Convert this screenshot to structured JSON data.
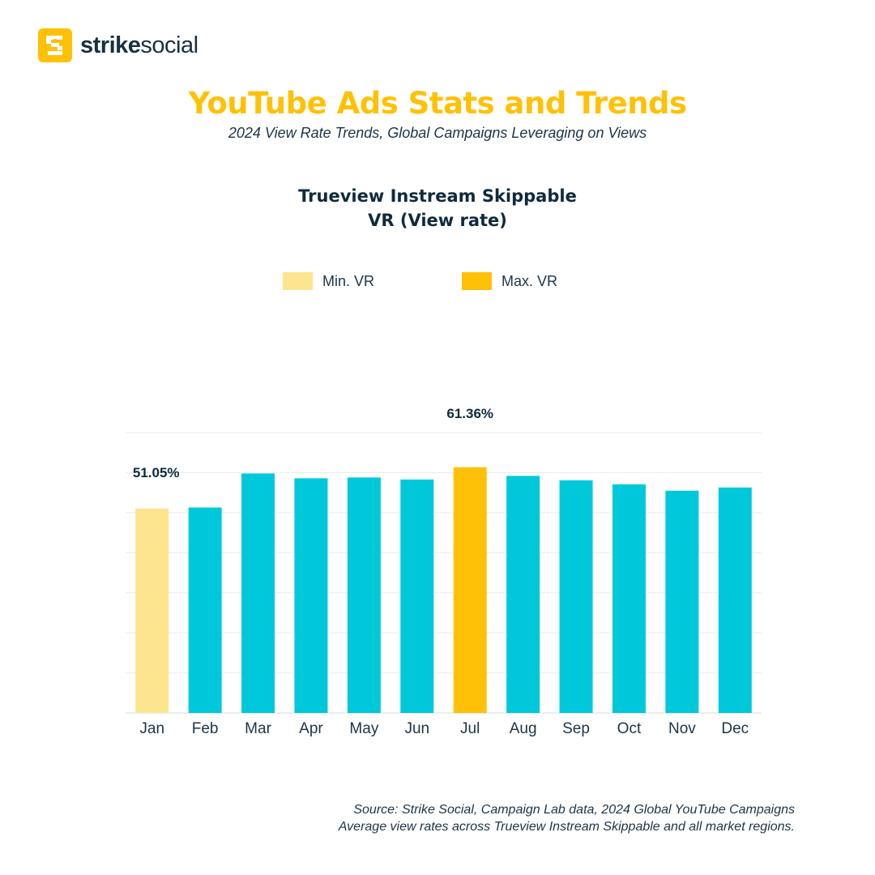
{
  "brand": {
    "name_bold": "strike",
    "name_regular": "social",
    "logo_icon": "strike-social-logo-icon"
  },
  "header": {
    "title": "YouTube Ads Stats and Trends",
    "subtitle": "2024 View Rate Trends, Global Campaigns Leveraging on Views"
  },
  "legend": {
    "items": [
      {
        "label": "Min. VR",
        "color": "#fde58f"
      },
      {
        "label": "Max. VR",
        "color": "#ffc107"
      }
    ]
  },
  "colors": {
    "default_bar": "#00c8db",
    "min_bar": "#fde58f",
    "max_bar": "#ffc107",
    "title": "#ffc107",
    "text": "#0f2a3d"
  },
  "chart_data": {
    "type": "bar",
    "title_line1": "Trueview Instream Skippable",
    "title_line2": "VR (View rate)",
    "categories": [
      "Jan",
      "Feb",
      "Mar",
      "Apr",
      "May",
      "Jun",
      "Jul",
      "Aug",
      "Sep",
      "Oct",
      "Nov",
      "Dec"
    ],
    "values": [
      51.05,
      51.3,
      59.8,
      58.6,
      58.8,
      58.3,
      61.36,
      59.2,
      58.1,
      57.1,
      55.5,
      56.3
    ],
    "highlight": [
      "min",
      null,
      null,
      null,
      null,
      null,
      "max",
      null,
      null,
      null,
      null,
      null
    ],
    "data_labels": {
      "0": "51.05%",
      "6": "61.36%"
    },
    "ylim": [
      0,
      70
    ],
    "grid": true
  },
  "footer": {
    "source_line1": "Source: Strike Social, Campaign Lab data, 2024 Global YouTube Campaigns",
    "source_line2": "Average view rates across Trueview Instream Skippable and all market regions."
  }
}
